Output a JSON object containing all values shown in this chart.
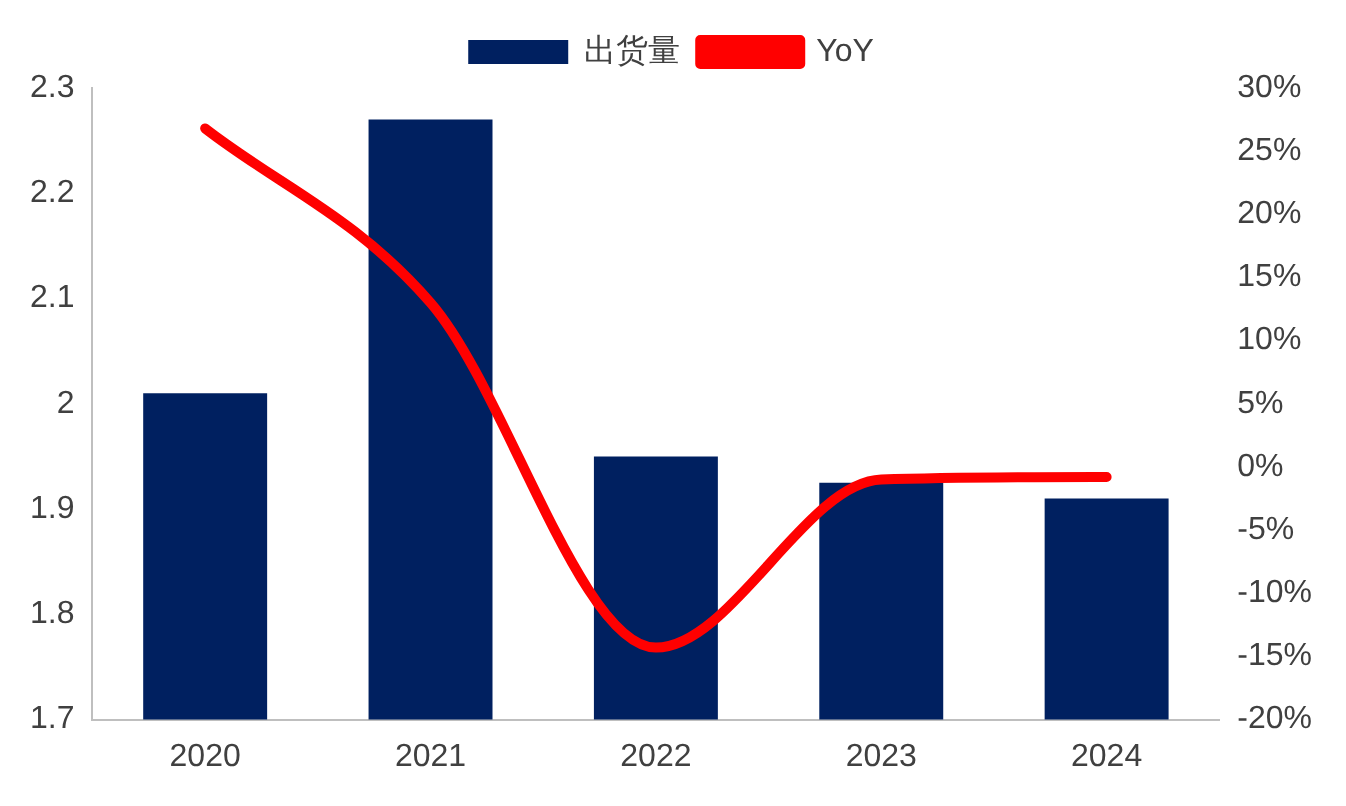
{
  "chart_data": {
    "type": "bar",
    "categories": [
      "2020",
      "2021",
      "2022",
      "2023",
      "2024"
    ],
    "series": [
      {
        "name": "出货量",
        "color": "#002060",
        "values": [
          2.01,
          2.27,
          1.95,
          1.925,
          1.91
        ]
      },
      {
        "name": "YoY",
        "type": "line",
        "axis": "y2",
        "color": "#ff0000",
        "values": [
          26.8,
          13,
          -14.3,
          -1,
          -0.8
        ]
      }
    ],
    "ylim": [
      1.7,
      2.3
    ],
    "yticks": [
      1.7,
      1.8,
      1.9,
      2,
      2.1,
      2.2,
      2.3
    ],
    "y2lim": [
      -20,
      30
    ],
    "y2ticks": [
      {
        "value": -20,
        "label": "-20%"
      },
      {
        "value": -15,
        "label": "-15%"
      },
      {
        "value": -10,
        "label": "-10%"
      },
      {
        "value": -5,
        "label": "-5%"
      },
      {
        "value": 0,
        "label": "0%"
      },
      {
        "value": 5,
        "label": "5%"
      },
      {
        "value": 10,
        "label": "10%"
      },
      {
        "value": 15,
        "label": "15%"
      },
      {
        "value": 20,
        "label": "20%"
      },
      {
        "value": 25,
        "label": "25%"
      },
      {
        "value": 30,
        "label": "30%"
      }
    ],
    "legend": "top",
    "grid": false,
    "marker": "none"
  }
}
